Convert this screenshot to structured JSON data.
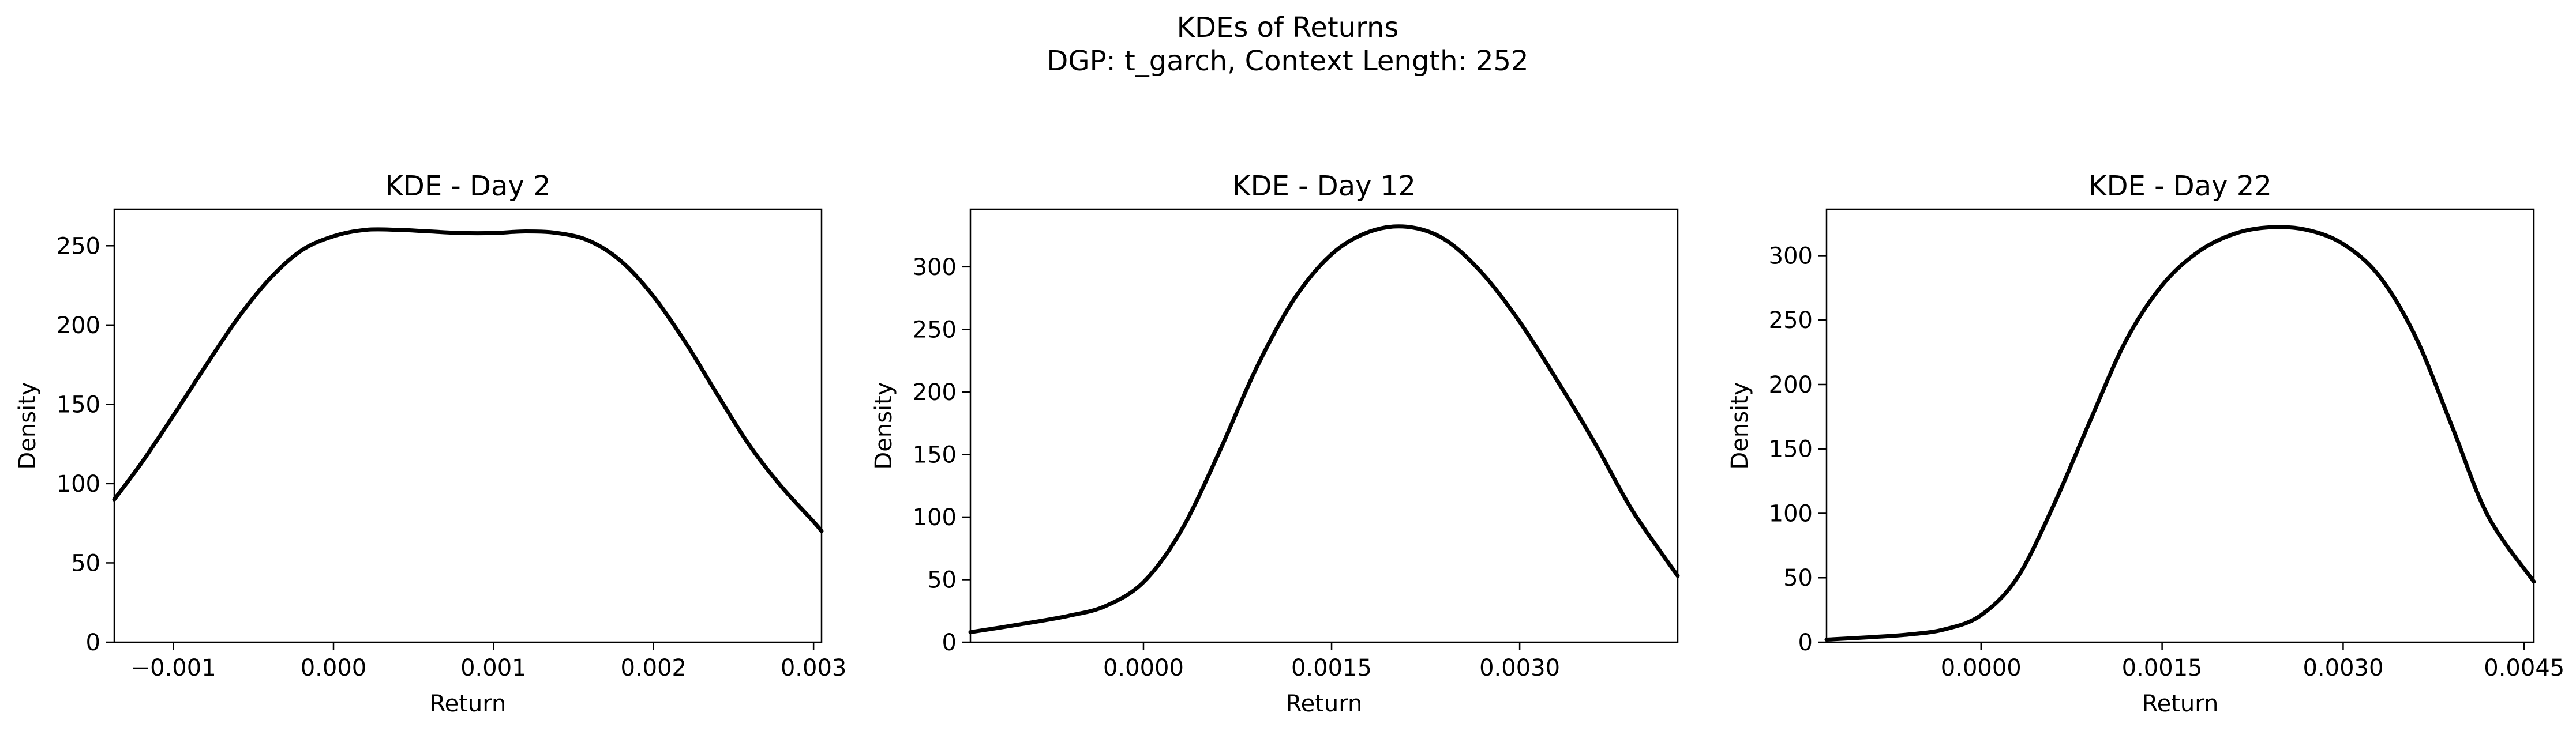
{
  "figure": {
    "title_line1": "KDEs of Returns",
    "title_line2": "DGP: t_garch, Context Length: 252"
  },
  "chart_data": [
    {
      "type": "line",
      "title": "KDE - Day 2",
      "xlabel": "Return",
      "ylabel": "Density",
      "xlim": [
        -0.00137,
        0.00305
      ],
      "ylim": [
        0,
        273
      ],
      "xticks": [
        -0.001,
        0.0,
        0.001,
        0.002,
        0.003
      ],
      "xtick_labels": [
        "−0.001",
        "0.000",
        "0.001",
        "0.002",
        "0.003"
      ],
      "yticks": [
        0,
        50,
        100,
        150,
        200,
        250
      ],
      "ytick_labels": [
        "0",
        "50",
        "100",
        "150",
        "200",
        "250"
      ],
      "grid": false,
      "line_color": "#000000",
      "series": [
        {
          "x": [
            -0.00137,
            -0.0012,
            -0.001,
            -0.0008,
            -0.0006,
            -0.0004,
            -0.0002,
            0.0,
            0.0002,
            0.0004,
            0.0006,
            0.0008,
            0.001,
            0.0012,
            0.0014,
            0.0016,
            0.0018,
            0.002,
            0.0022,
            0.0024,
            0.0026,
            0.0028,
            0.003,
            0.00305
          ],
          "y": [
            90,
            113,
            143,
            174,
            204,
            229,
            247,
            256,
            260,
            260,
            259,
            258,
            258,
            259,
            258,
            253,
            240,
            218,
            189,
            156,
            124,
            98,
            76,
            70
          ]
        }
      ]
    },
    {
      "type": "line",
      "title": "KDE - Day 12",
      "xlabel": "Return",
      "ylabel": "Density",
      "xlim": [
        -0.00138,
        0.00426
      ],
      "ylim": [
        0,
        346
      ],
      "xticks": [
        0.0,
        0.0015,
        0.003
      ],
      "xtick_labels": [
        "0.0000",
        "0.0015",
        "0.0030"
      ],
      "yticks": [
        0,
        50,
        100,
        150,
        200,
        250,
        300
      ],
      "ytick_labels": [
        "0",
        "50",
        "100",
        "150",
        "200",
        "250",
        "300"
      ],
      "grid": false,
      "line_color": "#000000",
      "series": [
        {
          "x": [
            -0.00138,
            -0.001,
            -0.0006,
            -0.0003,
            0.0,
            0.0003,
            0.0006,
            0.0009,
            0.0012,
            0.0015,
            0.0018,
            0.0021,
            0.0024,
            0.0027,
            0.003,
            0.0033,
            0.0036,
            0.0039,
            0.00426
          ],
          "y": [
            8,
            14,
            21,
            29,
            48,
            89,
            151,
            219,
            274,
            310,
            328,
            332,
            322,
            295,
            256,
            209,
            159,
            105,
            53
          ]
        }
      ]
    },
    {
      "type": "line",
      "title": "KDE - Day 22",
      "xlabel": "Return",
      "ylabel": "Density",
      "xlim": [
        -0.00128,
        0.00458
      ],
      "ylim": [
        0,
        336
      ],
      "xticks": [
        0.0,
        0.0015,
        0.003,
        0.0045
      ],
      "xtick_labels": [
        "0.0000",
        "0.0015",
        "0.0030",
        "0.0045"
      ],
      "yticks": [
        0,
        50,
        100,
        150,
        200,
        250,
        300
      ],
      "ytick_labels": [
        "0",
        "50",
        "100",
        "150",
        "200",
        "250",
        "300"
      ],
      "grid": false,
      "line_color": "#000000",
      "series": [
        {
          "x": [
            -0.00128,
            -0.0009,
            -0.0006,
            -0.0003,
            0.0,
            0.0003,
            0.0006,
            0.0009,
            0.0012,
            0.0015,
            0.0018,
            0.0021,
            0.0024,
            0.0027,
            0.003,
            0.0033,
            0.0036,
            0.0039,
            0.0042,
            0.00458
          ],
          "y": [
            2,
            4,
            6,
            10,
            21,
            50,
            106,
            171,
            234,
            277,
            303,
            317,
            322,
            320,
            309,
            284,
            237,
            168,
            98,
            47
          ]
        }
      ]
    }
  ]
}
